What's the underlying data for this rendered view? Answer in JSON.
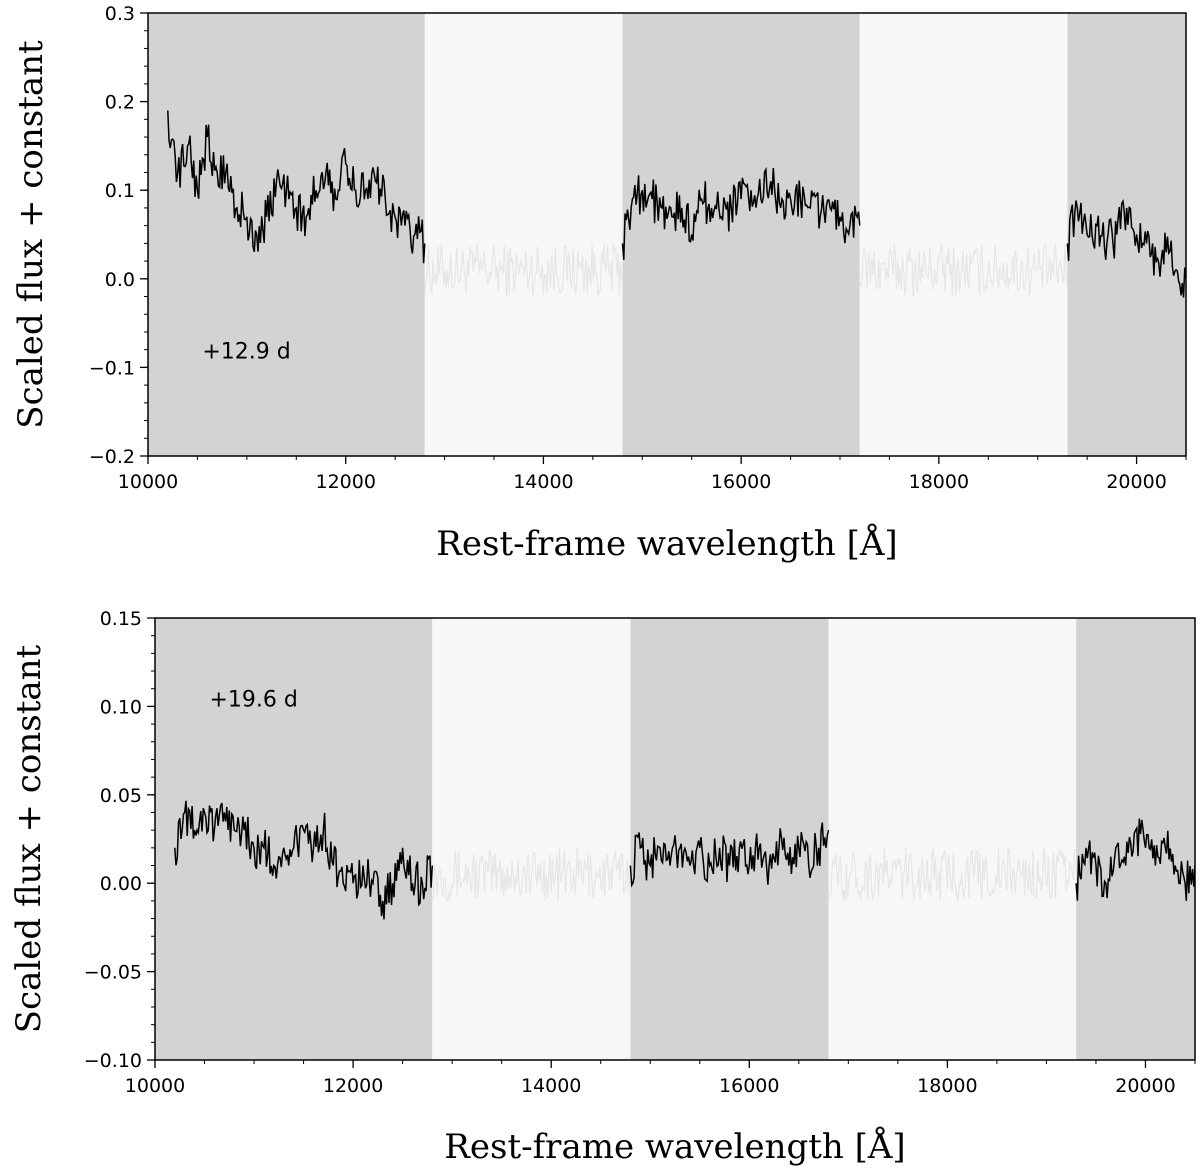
{
  "chart_data": [
    {
      "type": "line",
      "xlabel": "Rest-frame wavelength [Å]",
      "ylabel": "Scaled flux + constant",
      "xlim": [
        10000,
        20500
      ],
      "ylim": [
        -0.2,
        0.3
      ],
      "xticks": [
        10000,
        12000,
        14000,
        16000,
        18000,
        20000
      ],
      "xtick_labels": [
        "10000",
        "12000",
        "14000",
        "16000",
        "18000",
        "20000"
      ],
      "yticks": [
        -0.2,
        -0.1,
        0.0,
        0.1,
        0.2,
        0.3
      ],
      "ytick_labels": [
        "−0.2",
        "−0.1",
        "0.0",
        "0.1",
        "0.2",
        "0.3"
      ],
      "annotation": {
        "text": "+12.9 d",
        "x": 10550,
        "y": -0.09
      },
      "shaded_bands": [
        [
          10000,
          12800
        ],
        [
          14800,
          17200
        ],
        [
          19300,
          20500
        ]
      ],
      "telluric_bands": [
        [
          12800,
          14800
        ],
        [
          17200,
          19300
        ]
      ],
      "colors": {
        "band": "#d3d3d3",
        "telluric_band": "#f7f7f7",
        "main_line": "#000000",
        "faint_line": "#e6e6e6"
      },
      "series": [
        {
          "x": [
            10200,
            10300,
            10400,
            10500,
            10600,
            10700,
            10800,
            10900,
            11000,
            11100,
            11200,
            11300,
            11400,
            11500,
            11600,
            11700,
            11800,
            11900,
            12000,
            12100,
            12200,
            12300,
            12400,
            12500,
            12600,
            12700,
            12800
          ],
          "y": [
            0.19,
            0.12,
            0.15,
            0.1,
            0.16,
            0.12,
            0.13,
            0.08,
            0.07,
            0.05,
            0.07,
            0.11,
            0.1,
            0.08,
            0.07,
            0.1,
            0.12,
            0.09,
            0.13,
            0.1,
            0.1,
            0.11,
            0.09,
            0.07,
            0.06,
            0.05,
            0.04
          ]
        },
        {
          "x": [
            14800,
            14900,
            15000,
            15100,
            15200,
            15300,
            15400,
            15500,
            15600,
            15700,
            15800,
            15900,
            16000,
            16100,
            16200,
            16300,
            16400,
            16500,
            16600,
            16700,
            16800,
            16900,
            17000,
            17100,
            17200
          ],
          "y": [
            0.04,
            0.09,
            0.1,
            0.09,
            0.08,
            0.07,
            0.08,
            0.05,
            0.09,
            0.08,
            0.07,
            0.08,
            0.09,
            0.1,
            0.09,
            0.11,
            0.08,
            0.09,
            0.09,
            0.08,
            0.07,
            0.08,
            0.07,
            0.06,
            0.06
          ]
        },
        {
          "x": [
            19300,
            19400,
            19500,
            19600,
            19700,
            19800,
            19900,
            20000,
            20100,
            20200,
            20300,
            20400,
            20500
          ],
          "y": [
            0.04,
            0.08,
            0.05,
            0.06,
            0.04,
            0.05,
            0.08,
            0.05,
            0.04,
            0.02,
            0.03,
            0.01,
            0.0
          ]
        }
      ]
    },
    {
      "type": "line",
      "xlabel": "Rest-frame wavelength [Å]",
      "ylabel": "Scaled flux + constant",
      "xlim": [
        10000,
        20500
      ],
      "ylim": [
        -0.1,
        0.15
      ],
      "xticks": [
        10000,
        12000,
        14000,
        16000,
        18000,
        20000
      ],
      "xtick_labels": [
        "10000",
        "12000",
        "14000",
        "16000",
        "18000",
        "20000"
      ],
      "yticks": [
        -0.1,
        -0.05,
        0.0,
        0.05,
        0.1,
        0.15
      ],
      "ytick_labels": [
        "−0.10",
        "−0.05",
        "0.00",
        "0.05",
        "0.10",
        "0.15"
      ],
      "annotation": {
        "text": "+19.6 d",
        "x": 10550,
        "y": 0.1
      },
      "shaded_bands": [
        [
          10000,
          12800
        ],
        [
          14800,
          16800
        ],
        [
          19300,
          20500
        ]
      ],
      "telluric_bands": [
        [
          12800,
          14800
        ],
        [
          16800,
          19300
        ]
      ],
      "colors": {
        "band": "#d3d3d3",
        "telluric_band": "#f7f7f7",
        "main_line": "#000000",
        "faint_line": "#e6e6e6"
      },
      "series": [
        {
          "x": [
            10200,
            10300,
            10400,
            10500,
            10600,
            10700,
            10800,
            10900,
            11000,
            11100,
            11200,
            11300,
            11400,
            11500,
            11600,
            11700,
            11800,
            11900,
            12000,
            12100,
            12200,
            12300,
            12400,
            12500,
            12600,
            12700,
            12800
          ],
          "y": [
            0.02,
            0.04,
            0.03,
            0.04,
            0.03,
            0.04,
            0.03,
            0.03,
            0.02,
            0.02,
            0.01,
            0.02,
            0.02,
            0.03,
            0.02,
            0.03,
            0.01,
            0.0,
            0.0,
            0.01,
            0.0,
            -0.01,
            0.0,
            0.02,
            0.0,
            0.0,
            0.01
          ]
        },
        {
          "x": [
            14800,
            14900,
            15000,
            15100,
            15200,
            15300,
            15400,
            15500,
            15600,
            15700,
            15800,
            15900,
            16000,
            16100,
            16200,
            16300,
            16400,
            16500,
            16600,
            16700,
            16800
          ],
          "y": [
            0.01,
            0.02,
            0.01,
            0.02,
            0.01,
            0.02,
            0.01,
            0.02,
            0.01,
            0.02,
            0.01,
            0.02,
            0.01,
            0.02,
            0.01,
            0.02,
            0.01,
            0.02,
            0.01,
            0.02,
            0.03
          ]
        },
        {
          "x": [
            19300,
            19400,
            19500,
            19600,
            19700,
            19800,
            19900,
            20000,
            20100,
            20200,
            20300,
            20400,
            20500
          ],
          "y": [
            0.0,
            0.02,
            0.01,
            0.0,
            0.02,
            0.01,
            0.03,
            0.02,
            0.01,
            0.02,
            0.01,
            0.0,
            0.01
          ]
        }
      ]
    }
  ]
}
